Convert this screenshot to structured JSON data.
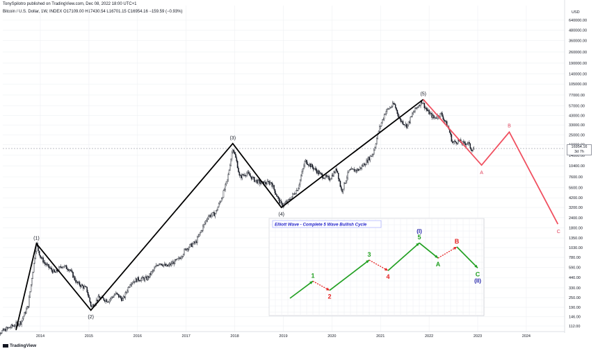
{
  "header": {
    "publisher": "TonySpilotro published on TradingView.com, Dec 08, 2022 18:00 UTC+1",
    "symbol": "Bitcoin / U.S. Dollar, 1W, INDEX  O17109.00  H17430.54  L16701.15  C16954.16  −159.59 (−0.93%)"
  },
  "branding": {
    "logo_text": "TradingView"
  },
  "chart_data": {
    "type": "line",
    "currency": "USD",
    "scale": "log",
    "ylim": [
      85,
      900000
    ],
    "xlim": [
      2013.0,
      2025.0
    ],
    "grid": true,
    "last_price": "16954.16",
    "countdown": "3d 7h",
    "y_ticks": [
      {
        "value": 112,
        "label": "112.00"
      },
      {
        "value": 146,
        "label": "146.00"
      },
      {
        "value": 190,
        "label": "190.00"
      },
      {
        "value": 250,
        "label": "250.00"
      },
      {
        "value": 330,
        "label": "330.00"
      },
      {
        "value": 440,
        "label": "440.00"
      },
      {
        "value": 590,
        "label": "590.00"
      },
      {
        "value": 780,
        "label": "780.00"
      },
      {
        "value": 1030,
        "label": "1030.00"
      },
      {
        "value": 1350,
        "label": "1350.00"
      },
      {
        "value": 1800,
        "label": "1800.00"
      },
      {
        "value": 2400,
        "label": "2400.00"
      },
      {
        "value": 3200,
        "label": "3200.00"
      },
      {
        "value": 4200,
        "label": "4200.00"
      },
      {
        "value": 5600,
        "label": "5600.00"
      },
      {
        "value": 7600,
        "label": "7600.00"
      },
      {
        "value": 10400,
        "label": "10400.00"
      },
      {
        "value": 14000,
        "label": "14000.00"
      },
      {
        "value": 19000,
        "label": "19000.00"
      },
      {
        "value": 25000,
        "label": "25000.00"
      },
      {
        "value": 33000,
        "label": "33000.00"
      },
      {
        "value": 43000,
        "label": "43000.00"
      },
      {
        "value": 57000,
        "label": "57000.00"
      },
      {
        "value": 77000,
        "label": "77000.00"
      },
      {
        "value": 105000,
        "label": "105000.00"
      },
      {
        "value": 140000,
        "label": "140000.00"
      },
      {
        "value": 190000,
        "label": "190000.00"
      },
      {
        "value": 260000,
        "label": "260000.00"
      },
      {
        "value": 360000,
        "label": "360000.00"
      },
      {
        "value": 480000,
        "label": "480000.00"
      },
      {
        "value": 640000,
        "label": "640000.00"
      }
    ],
    "x_ticks": [
      {
        "value": 2014.0,
        "label": "2014"
      },
      {
        "value": 2015.0,
        "label": "2015"
      },
      {
        "value": 2016.0,
        "label": "2016"
      },
      {
        "value": 2017.0,
        "label": "2017"
      },
      {
        "value": 2018.0,
        "label": "2018"
      },
      {
        "value": 2019.0,
        "label": "2019"
      },
      {
        "value": 2020.0,
        "label": "2020"
      },
      {
        "value": 2021.0,
        "label": "2021"
      },
      {
        "value": 2022.0,
        "label": "2022"
      },
      {
        "value": 2023.0,
        "label": "2023"
      },
      {
        "value": 2024.0,
        "label": "2024"
      }
    ],
    "price_anchors": [
      [
        2013.0,
        100
      ],
      [
        2013.2,
        95
      ],
      [
        2013.4,
        110
      ],
      [
        2013.6,
        125
      ],
      [
        2013.75,
        200
      ],
      [
        2013.92,
        1150
      ],
      [
        2014.0,
        800
      ],
      [
        2014.1,
        650
      ],
      [
        2014.3,
        500
      ],
      [
        2014.45,
        620
      ],
      [
        2014.6,
        560
      ],
      [
        2014.75,
        380
      ],
      [
        2014.95,
        320
      ],
      [
        2015.05,
        190
      ],
      [
        2015.2,
        250
      ],
      [
        2015.4,
        230
      ],
      [
        2015.55,
        280
      ],
      [
        2015.7,
        235
      ],
      [
        2015.85,
        380
      ],
      [
        2016.0,
        420
      ],
      [
        2016.2,
        430
      ],
      [
        2016.45,
        680
      ],
      [
        2016.6,
        600
      ],
      [
        2016.85,
        740
      ],
      [
        2017.0,
        1000
      ],
      [
        2017.2,
        1200
      ],
      [
        2017.45,
        2500
      ],
      [
        2017.6,
        2700
      ],
      [
        2017.75,
        4500
      ],
      [
        2017.85,
        7000
      ],
      [
        2017.96,
        17500
      ],
      [
        2018.05,
        11000
      ],
      [
        2018.1,
        7500
      ],
      [
        2018.25,
        8500
      ],
      [
        2018.4,
        7000
      ],
      [
        2018.55,
        6300
      ],
      [
        2018.75,
        6500
      ],
      [
        2018.9,
        4000
      ],
      [
        2018.97,
        3400
      ],
      [
        2019.1,
        3800
      ],
      [
        2019.3,
        5500
      ],
      [
        2019.45,
        12000
      ],
      [
        2019.6,
        10000
      ],
      [
        2019.8,
        7800
      ],
      [
        2019.95,
        7200
      ],
      [
        2020.1,
        9500
      ],
      [
        2020.2,
        5000
      ],
      [
        2020.35,
        9000
      ],
      [
        2020.55,
        9300
      ],
      [
        2020.7,
        11500
      ],
      [
        2020.85,
        15000
      ],
      [
        2020.97,
        29000
      ],
      [
        2021.1,
        48000
      ],
      [
        2021.28,
        60000
      ],
      [
        2021.4,
        38000
      ],
      [
        2021.55,
        32000
      ],
      [
        2021.68,
        48000
      ],
      [
        2021.85,
        65000
      ],
      [
        2021.95,
        50000
      ],
      [
        2022.1,
        40000
      ],
      [
        2022.25,
        45000
      ],
      [
        2022.4,
        30000
      ],
      [
        2022.48,
        20000
      ],
      [
        2022.6,
        21000
      ],
      [
        2022.7,
        19500
      ],
      [
        2022.8,
        20000
      ],
      [
        2022.87,
        16500
      ],
      [
        2022.93,
        17000
      ]
    ],
    "wave_labels": [
      {
        "label": "(1)",
        "date": 2013.92,
        "price": 1150,
        "role": "peak"
      },
      {
        "label": "(2)",
        "date": 2015.04,
        "price": 175,
        "role": "trough"
      },
      {
        "label": "(3)",
        "date": 2017.96,
        "price": 19500,
        "role": "peak"
      },
      {
        "label": "(4)",
        "date": 2018.96,
        "price": 3200,
        "role": "trough"
      },
      {
        "label": "(5)",
        "date": 2021.88,
        "price": 68000,
        "role": "peak"
      }
    ],
    "projection": [
      {
        "label": "",
        "date": 2021.88,
        "price": 68000
      },
      {
        "label": "A",
        "date": 2023.08,
        "price": 10600
      },
      {
        "label": "B",
        "date": 2023.65,
        "price": 27000
      },
      {
        "label": "C",
        "date": 2024.65,
        "price": 2000
      }
    ],
    "inset": {
      "title": "Elliott Wave - Complete 5 Wave Bullish Cycle",
      "points": [
        {
          "label": "",
          "x": 0.0,
          "y": 0.0,
          "color": "#22a022"
        },
        {
          "label": "1",
          "x": 0.11,
          "y": 0.26,
          "color": "#22a022",
          "pos": "above"
        },
        {
          "label": "2",
          "x": 0.19,
          "y": 0.12,
          "color": "#e52222",
          "pos": "below"
        },
        {
          "label": "3",
          "x": 0.38,
          "y": 0.58,
          "color": "#22a022",
          "pos": "above"
        },
        {
          "label": "4",
          "x": 0.47,
          "y": 0.42,
          "color": "#e52222",
          "pos": "below"
        },
        {
          "label": "5",
          "x": 0.62,
          "y": 0.84,
          "color": "#22a022",
          "pos": "above"
        },
        {
          "label": "A",
          "x": 0.71,
          "y": 0.61,
          "color": "#22a022",
          "pos": "below"
        },
        {
          "label": "B",
          "x": 0.8,
          "y": 0.78,
          "color": "#e52222",
          "pos": "above"
        },
        {
          "label": "C",
          "x": 0.9,
          "y": 0.46,
          "color": "#22a022",
          "pos": "below"
        }
      ],
      "degree_labels": [
        {
          "label": "(I)",
          "at": "5",
          "pos": "above",
          "color": "#2222aa"
        },
        {
          "label": "(II)",
          "at": "C",
          "pos": "below",
          "color": "#2222aa"
        }
      ]
    },
    "colors": {
      "candles": "#131722",
      "impulse_line": "#000000",
      "projection_line": "#f05060",
      "projection_text": "#e0405a",
      "grid": "#eef0f3",
      "axis_text": "#131722",
      "last_price_line": "#9598a1",
      "inset_border": "#c9ccd3",
      "inset_grid": "#eceef1",
      "inset_title": "#2222cc"
    }
  }
}
